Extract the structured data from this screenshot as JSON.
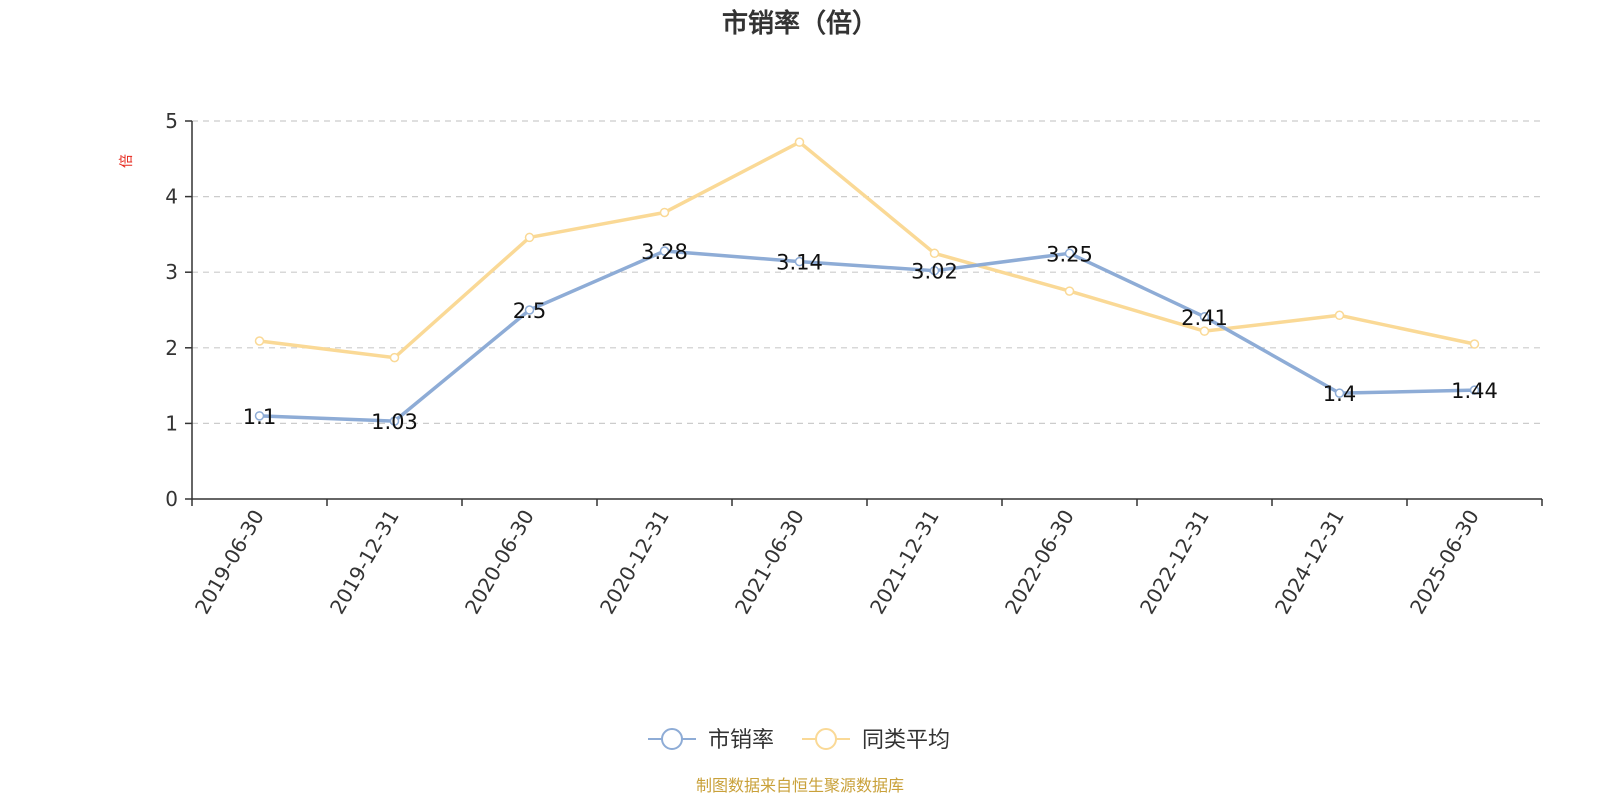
{
  "chart_data": {
    "type": "line",
    "title": "市销率（倍）",
    "ylabel": "倍",
    "xlabel": "",
    "ylim": [
      0,
      5
    ],
    "yticks": [
      0,
      1,
      2,
      3,
      4,
      5
    ],
    "grid": true,
    "legend_position": "bottom-center",
    "categories": [
      "2019-06-30",
      "2019-12-31",
      "2020-06-30",
      "2020-12-31",
      "2021-06-30",
      "2021-12-31",
      "2022-06-30",
      "2022-12-31",
      "2024-12-31",
      "2025-06-30"
    ],
    "series": [
      {
        "name": "市销率",
        "color": "#8eacd6",
        "values": [
          1.1,
          1.03,
          2.5,
          3.28,
          3.14,
          3.02,
          3.25,
          2.41,
          1.4,
          1.44
        ],
        "labels": [
          "1.1",
          "1.03",
          "2.5",
          "3.28",
          "3.14",
          "3.02",
          "3.25",
          "2.41",
          "1.4",
          "1.44"
        ]
      },
      {
        "name": "同类平均",
        "color": "#fad996",
        "values": [
          2.09,
          1.87,
          3.46,
          3.79,
          4.72,
          3.25,
          2.75,
          2.22,
          2.43,
          2.05
        ]
      }
    ]
  },
  "source_text": "制图数据来自恒生聚源数据库",
  "colors": {
    "unit_label": "#e6271c",
    "source": "#c9a13a",
    "axis": "#333333",
    "grid": "#cccccc"
  }
}
